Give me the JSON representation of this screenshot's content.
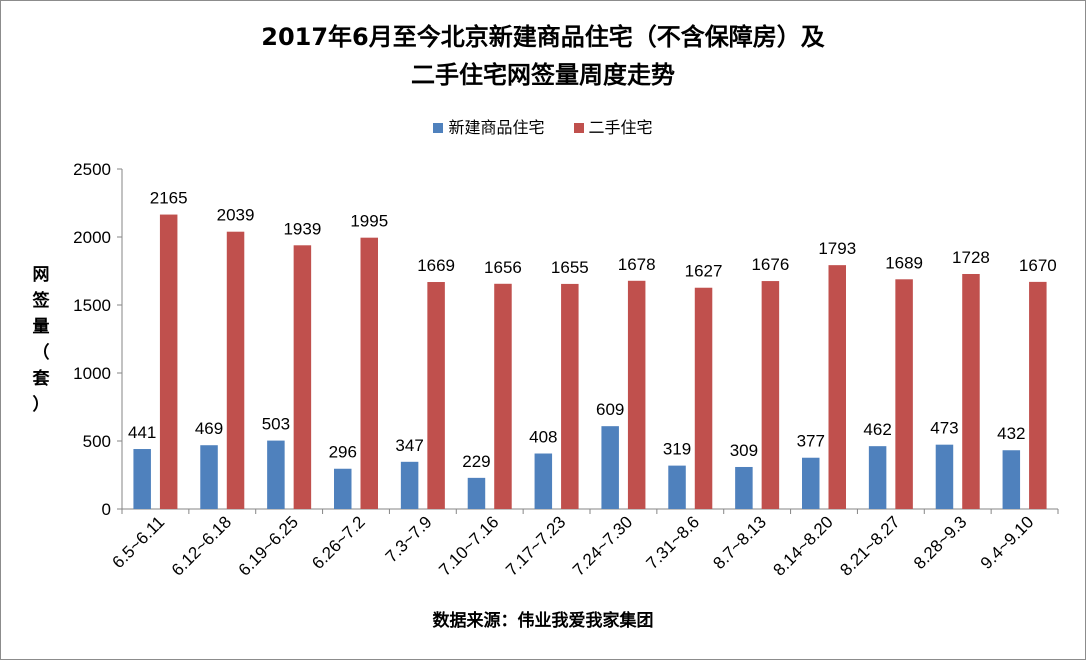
{
  "chart_data": {
    "type": "bar",
    "title_line1": "2017年6月至今北京新建商品住宅（不含保障房）及",
    "title_line2": "二手住宅网签量周度走势",
    "ylabel_chars": [
      "网",
      "签",
      "量",
      "（",
      "套",
      "）"
    ],
    "source": "数据来源：伟业我爱我家集团",
    "ylim": [
      0,
      2500
    ],
    "yticks": [
      0,
      500,
      1000,
      1500,
      2000,
      2500
    ],
    "legend_position": "top",
    "grid": false,
    "categories": [
      "6.5~6.11",
      "6.12~6.18",
      "6.19~6.25",
      "6.26~7.2",
      "7.3~7.9",
      "7.10~7.16",
      "7.17~7.23",
      "7.24~7.30",
      "7.31~8.6",
      "8.7~8.13",
      "8.14~8.20",
      "8.21~8.27",
      "8.28~9.3",
      "9.4~9.10"
    ],
    "series": [
      {
        "name": "新建商品住宅",
        "color": "#4F81BD",
        "values": [
          441,
          469,
          503,
          296,
          347,
          229,
          408,
          609,
          319,
          309,
          377,
          462,
          473,
          432
        ]
      },
      {
        "name": "二手住宅",
        "color": "#C0504D",
        "values": [
          2165,
          2039,
          1939,
          1995,
          1669,
          1656,
          1655,
          1678,
          1627,
          1676,
          1793,
          1689,
          1728,
          1670
        ]
      }
    ]
  }
}
